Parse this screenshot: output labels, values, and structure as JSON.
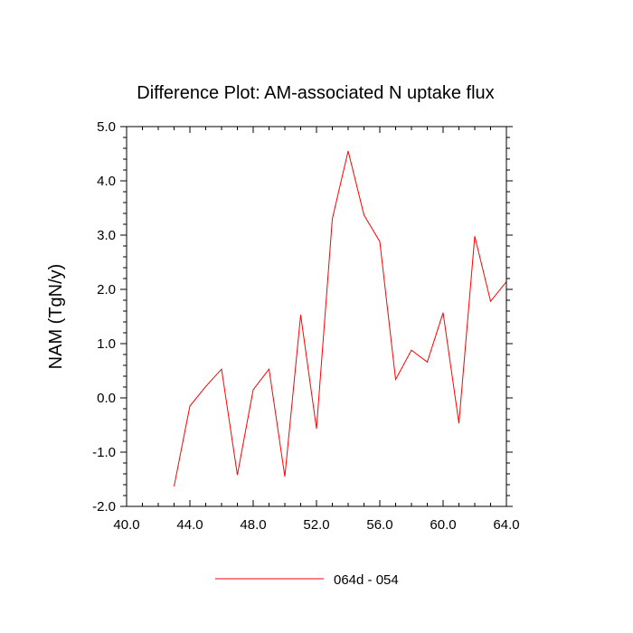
{
  "chart_data": {
    "type": "line",
    "title": "Difference Plot: AM-associated N uptake flux",
    "ylabel": "NAM  (TgN/y)",
    "xlabel": "",
    "xlim": [
      40,
      64
    ],
    "ylim": [
      -2,
      5
    ],
    "xticks": [
      40,
      44,
      48,
      52,
      56,
      60,
      64
    ],
    "xtick_labels": [
      "40.0",
      "44.0",
      "48.0",
      "52.0",
      "56.0",
      "60.0",
      "64.0"
    ],
    "yticks": [
      -2,
      -1,
      0,
      1,
      2,
      3,
      4,
      5
    ],
    "ytick_labels": [
      "-2.0",
      "-1.0",
      "0.0",
      "1.0",
      "2.0",
      "3.0",
      "4.0",
      "5.0"
    ],
    "grid": false,
    "legend_position": "bottom",
    "series": [
      {
        "name": "064d - 054",
        "color": "#ff0000",
        "x": [
          43,
          44,
          45,
          46,
          47,
          48,
          49,
          50,
          51,
          52,
          53,
          54,
          55,
          56,
          57,
          58,
          59,
          60,
          61,
          62,
          63,
          64
        ],
        "y": [
          -1.63,
          -0.15,
          0.21,
          0.53,
          -1.42,
          0.15,
          0.53,
          -1.45,
          1.53,
          -0.57,
          3.3,
          4.55,
          3.37,
          2.88,
          0.34,
          0.88,
          0.66,
          1.57,
          -0.47,
          2.98,
          1.78,
          2.14
        ]
      }
    ]
  }
}
